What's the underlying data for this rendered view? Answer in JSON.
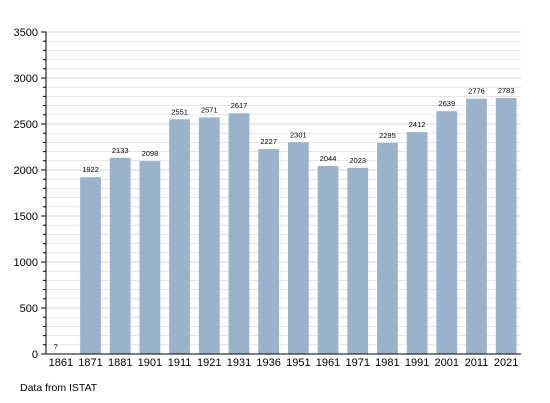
{
  "chart_data": {
    "type": "bar",
    "categories": [
      "1861",
      "1871",
      "1881",
      "1901",
      "1911",
      "1921",
      "1931",
      "1936",
      "1951",
      "1961",
      "1971",
      "1981",
      "1991",
      "2001",
      "2011",
      "2021"
    ],
    "values": [
      null,
      1922,
      2133,
      2098,
      2551,
      2571,
      2617,
      2227,
      2301,
      2044,
      2023,
      2295,
      2412,
      2639,
      2776,
      2783
    ],
    "data_labels": [
      "?",
      "1922",
      "2133",
      "2098",
      "2551",
      "2571",
      "2617",
      "2227",
      "2301",
      "2044",
      "2023",
      "2295",
      "2412",
      "2639",
      "2776",
      "2783"
    ],
    "y_ticks": [
      "0",
      "500",
      "1000",
      "1500",
      "2000",
      "2500",
      "3000",
      "3500"
    ],
    "ylim": [
      0,
      3500
    ],
    "grid": true,
    "bar_color": "#9ab3cd",
    "grid_color": "#d6d6d6"
  },
  "source_note": "Data from ISTAT"
}
